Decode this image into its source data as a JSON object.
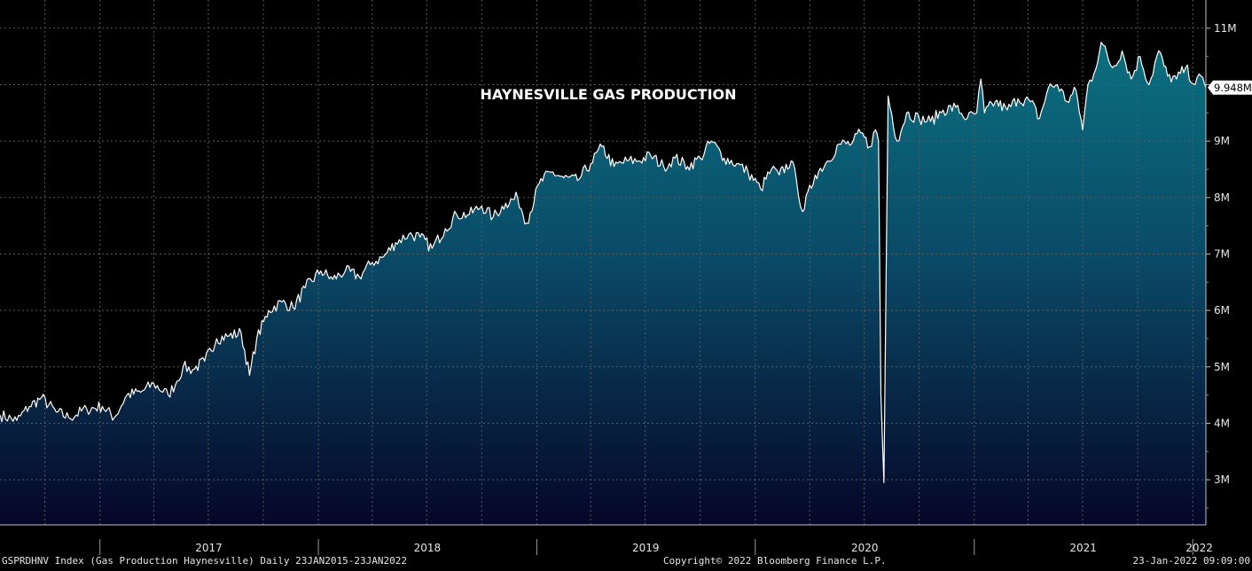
{
  "chart_data": {
    "type": "area",
    "title": "HAYNESVILLE GAS PRODUCTION",
    "y_unit_suffix": "M",
    "ylim": [
      2.2,
      11.5
    ],
    "y_ticks": [
      3,
      4,
      5,
      6,
      7,
      8,
      9,
      10,
      11
    ],
    "y_tick_labels": [
      "3M",
      "4M",
      "5M",
      "6M",
      "7M",
      "8M",
      "9M",
      "",
      "11M"
    ],
    "xlim": [
      "2016-07-18",
      "2022-01-23"
    ],
    "year_labels": [
      {
        "label": "2017",
        "date": "2017-07-02"
      },
      {
        "label": "2018",
        "date": "2018-07-02"
      },
      {
        "label": "2019",
        "date": "2019-07-02"
      },
      {
        "label": "2020",
        "date": "2020-07-02"
      },
      {
        "label": "2021",
        "date": "2021-07-02"
      },
      {
        "label": "2022",
        "date": "2022-01-12"
      }
    ],
    "year_boundaries": [
      "2017-01-01",
      "2018-01-01",
      "2019-01-01",
      "2020-01-01",
      "2021-01-01",
      "2022-01-01"
    ],
    "last_value_label": "9.948M",
    "last_value": 9.948,
    "grid": true,
    "colors": {
      "line": "#ffffff",
      "fill_top": "#0b6f7f",
      "fill_bottom": "#060628",
      "grid": "#5a5a5a",
      "label_box": "#ffffff"
    },
    "series": [
      {
        "dates": [
          "2016-07-18",
          "2016-08-15",
          "2016-09-05",
          "2016-09-25",
          "2016-10-20",
          "2016-11-10",
          "2016-12-10",
          "2017-01-05",
          "2017-01-25",
          "2017-02-15",
          "2017-03-10",
          "2017-04-01",
          "2017-04-25",
          "2017-05-10",
          "2017-05-20",
          "2017-06-05",
          "2017-06-25",
          "2017-07-15",
          "2017-08-05",
          "2017-08-25",
          "2017-09-08",
          "2017-09-20",
          "2017-10-10",
          "2017-11-01",
          "2017-11-20",
          "2017-12-10",
          "2018-01-05",
          "2018-01-25",
          "2018-02-15",
          "2018-03-10",
          "2018-04-01",
          "2018-04-20",
          "2018-05-10",
          "2018-06-01",
          "2018-06-20",
          "2018-07-10",
          "2018-08-01",
          "2018-08-20",
          "2018-09-10",
          "2018-10-01",
          "2018-10-20",
          "2018-11-10",
          "2018-11-30",
          "2018-12-15",
          "2019-01-05",
          "2019-01-25",
          "2019-02-15",
          "2019-03-10",
          "2019-04-01",
          "2019-04-20",
          "2019-05-10",
          "2019-06-01",
          "2019-06-20",
          "2019-07-10",
          "2019-08-01",
          "2019-08-20",
          "2019-09-10",
          "2019-10-01",
          "2019-10-20",
          "2019-11-10",
          "2019-12-01",
          "2019-12-20",
          "2020-01-10",
          "2020-01-28",
          "2020-02-10",
          "2020-03-01",
          "2020-03-10",
          "2020-03-20",
          "2020-04-10",
          "2020-05-01",
          "2020-05-20",
          "2020-06-10",
          "2020-06-25",
          "2020-07-10",
          "2020-07-20",
          "2020-07-25",
          "2020-07-29",
          "2020-08-03",
          "2020-08-10",
          "2020-08-25",
          "2020-09-10",
          "2020-10-01",
          "2020-10-20",
          "2020-11-10",
          "2020-12-01",
          "2020-12-20",
          "2021-01-05",
          "2021-01-12",
          "2021-01-18",
          "2021-02-05",
          "2021-02-25",
          "2021-03-15",
          "2021-04-05",
          "2021-04-20",
          "2021-05-05",
          "2021-05-20",
          "2021-06-05",
          "2021-06-20",
          "2021-07-01",
          "2021-07-10",
          "2021-07-20",
          "2021-08-01",
          "2021-08-20",
          "2021-09-05",
          "2021-09-20",
          "2021-10-05",
          "2021-10-20",
          "2021-11-05",
          "2021-11-20",
          "2021-12-05",
          "2021-12-20",
          "2022-01-05",
          "2022-01-15",
          "2022-01-23"
        ],
        "values": [
          4.15,
          4.05,
          4.3,
          4.45,
          4.2,
          4.1,
          4.25,
          4.3,
          4.1,
          4.5,
          4.55,
          4.7,
          4.5,
          4.75,
          5.0,
          4.95,
          5.1,
          5.5,
          5.55,
          5.6,
          4.85,
          5.5,
          6.0,
          6.15,
          6.05,
          6.4,
          6.7,
          6.55,
          6.7,
          6.6,
          6.85,
          6.95,
          7.2,
          7.35,
          7.3,
          7.1,
          7.45,
          7.7,
          7.7,
          7.85,
          7.65,
          7.9,
          8.0,
          7.55,
          8.25,
          8.45,
          8.35,
          8.3,
          8.6,
          8.9,
          8.55,
          8.65,
          8.65,
          8.75,
          8.55,
          8.7,
          8.55,
          8.7,
          9.0,
          8.7,
          8.6,
          8.45,
          8.15,
          8.5,
          8.4,
          8.65,
          8.3,
          7.75,
          8.4,
          8.65,
          8.95,
          8.95,
          9.15,
          8.9,
          9.2,
          9.0,
          4.5,
          2.95,
          9.8,
          9.0,
          9.5,
          9.4,
          9.35,
          9.55,
          9.6,
          9.4,
          9.5,
          10.1,
          9.5,
          9.7,
          9.55,
          9.75,
          9.7,
          9.4,
          9.95,
          10.0,
          9.7,
          9.9,
          9.2,
          10.0,
          10.2,
          10.75,
          10.3,
          10.6,
          10.1,
          10.5,
          10.0,
          10.6,
          10.15,
          10.1,
          10.3,
          10.0,
          10.15,
          9.948
        ]
      }
    ]
  },
  "footer": {
    "left": "GSPRDHNV Index (Gas Production Haynesville)  Daily 23JAN2015-23JAN2022",
    "center": "Copyright© 2022 Bloomberg Finance L.P.",
    "right": "23-Jan-2022 09:09:00"
  }
}
